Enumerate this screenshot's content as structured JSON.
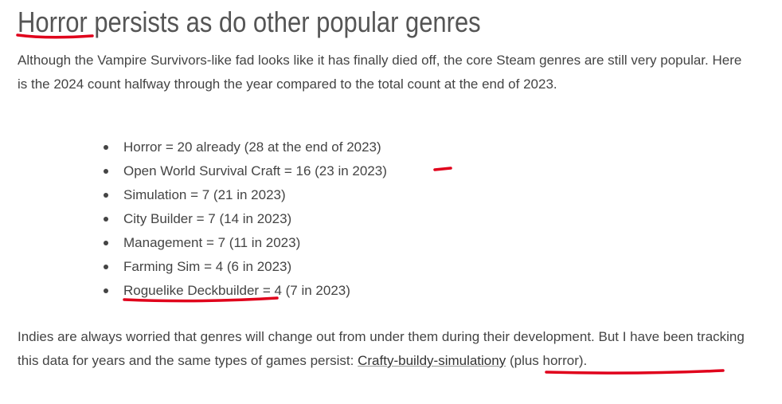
{
  "heading": "Horror persists as do other popular genres",
  "intro": "Although the Vampire Survivors-like fad looks like it has finally died off, the core Steam genres are still very popular. Here is the 2024 count halfway through the year compared to the total count at the end of 2023.",
  "list": [
    "Horror = 20 already (28 at the end of 2023)",
    "Open World Survival Craft = 16 (23 in 2023)",
    "Simulation = 7 (21 in 2023)",
    "City Builder = 7 (14 in 2023)",
    "Management = 7 (11 in 2023)",
    "Farming Sim = 4 (6 in 2023)",
    "Roguelike Deckbuilder = 4 (7 in 2023)"
  ],
  "closing": {
    "before": "Indies are always worried that genres will change out from under them during their development. But I have been tracking this data for years and the same types of games persist: ",
    "link": "Crafty-buildy-simulationy",
    "after": " (plus horror)."
  }
}
